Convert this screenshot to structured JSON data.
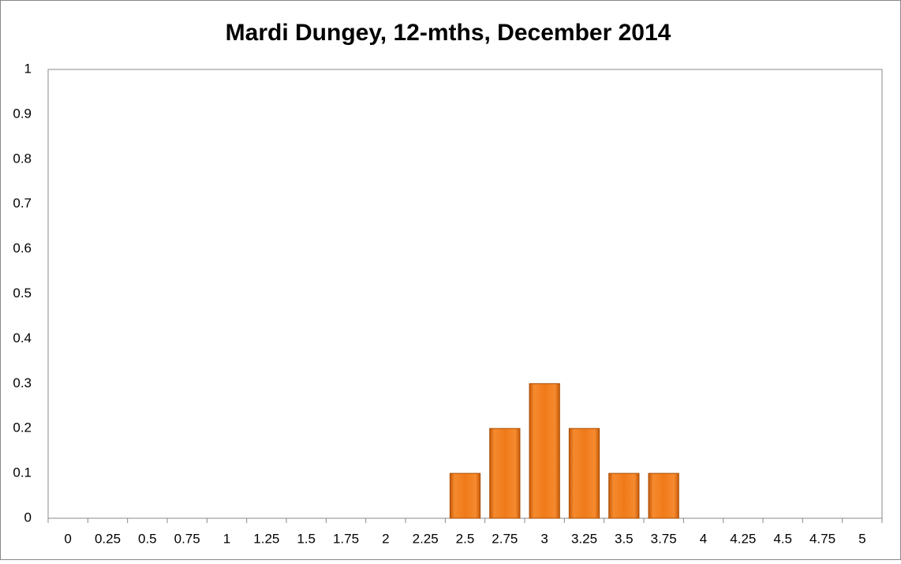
{
  "chart_data": {
    "type": "bar",
    "title": "Mardi Dungey, 12-mths, December 2014",
    "categories": [
      "0",
      "0.25",
      "0.5",
      "0.75",
      "1",
      "1.25",
      "1.5",
      "1.75",
      "2",
      "2.25",
      "2.5",
      "2.75",
      "3",
      "3.25",
      "3.5",
      "3.75",
      "4",
      "4.25",
      "4.5",
      "4.75",
      "5"
    ],
    "values": [
      0,
      0,
      0,
      0,
      0,
      0,
      0,
      0,
      0,
      0,
      0.1,
      0.2,
      0.3,
      0.2,
      0.1,
      0.1,
      0,
      0,
      0,
      0,
      0
    ],
    "color": "#f07a1a",
    "ylim": [
      0,
      1
    ],
    "yticks": [
      0,
      0.1,
      0.2,
      0.3,
      0.4,
      0.5,
      0.6,
      0.7,
      0.8,
      0.9,
      1
    ],
    "grid": false
  }
}
